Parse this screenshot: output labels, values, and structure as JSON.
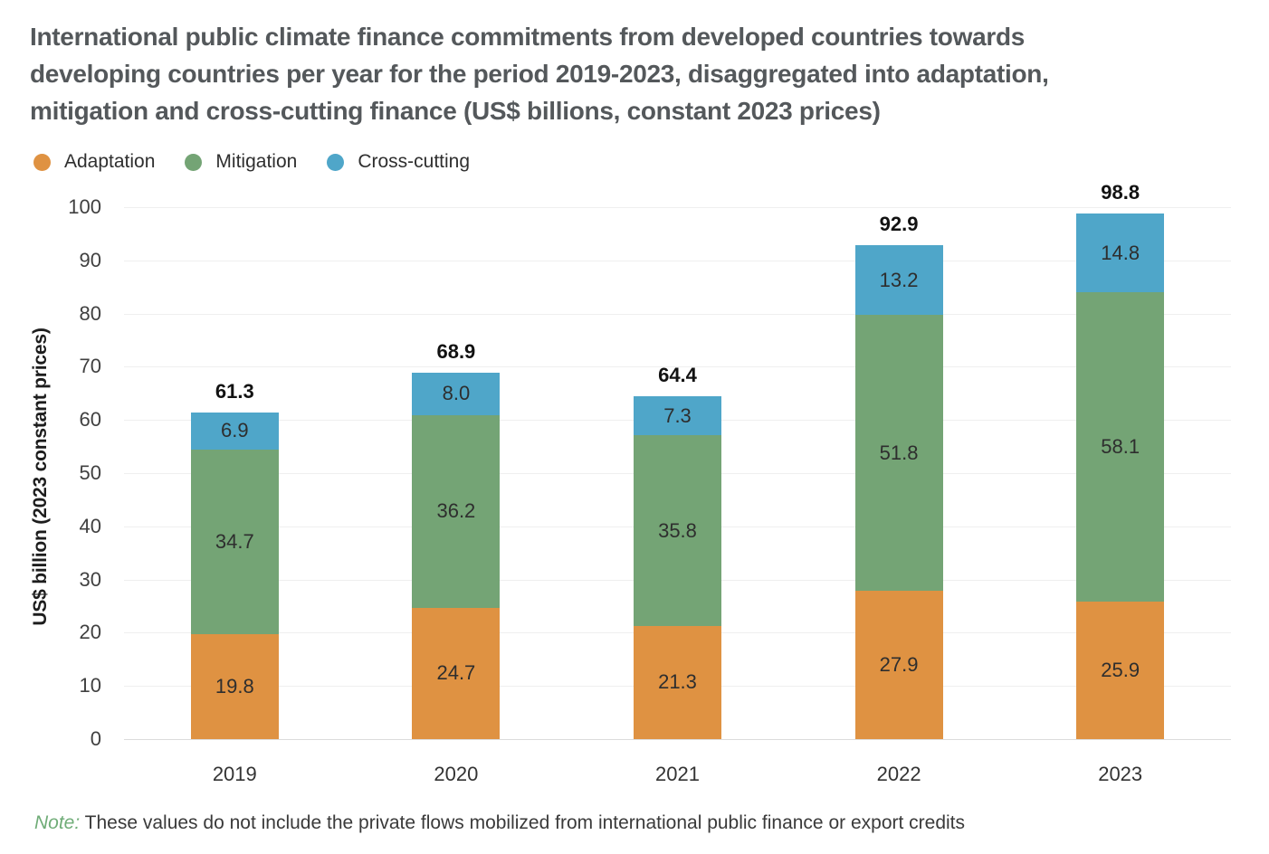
{
  "title_lines": [
    "International public climate finance commitments from developed countries towards",
    "developing countries per year for the period 2019-2023, disaggregated into adaptation,",
    "mitigation and cross-cutting finance (US$ billions, constant 2023 prices)"
  ],
  "chart_data": {
    "type": "bar",
    "stacked": true,
    "categories": [
      "2019",
      "2020",
      "2021",
      "2022",
      "2023"
    ],
    "series": [
      {
        "name": "Adaptation",
        "color": "#DF9242",
        "values": [
          19.8,
          24.7,
          21.3,
          27.9,
          25.9
        ]
      },
      {
        "name": "Mitigation",
        "color": "#74A475",
        "values": [
          34.7,
          36.2,
          35.8,
          51.8,
          58.1
        ]
      },
      {
        "name": "Cross-cutting",
        "color": "#4FA6C9",
        "values": [
          6.9,
          8.0,
          7.3,
          13.2,
          14.8
        ]
      }
    ],
    "totals": [
      61.3,
      68.9,
      64.4,
      92.9,
      98.8
    ],
    "title": "",
    "xlabel": "",
    "ylabel": "US$ billion (2023 constant prices)",
    "ylim": [
      0,
      100
    ],
    "y_ticks": [
      0,
      10,
      20,
      30,
      40,
      50,
      60,
      70,
      80,
      90,
      100
    ],
    "grid": "horizontal",
    "legend_position": "top-left"
  },
  "note": {
    "label": "Note:",
    "text": " These values do not include the private flows mobilized from international public finance or export credits"
  }
}
